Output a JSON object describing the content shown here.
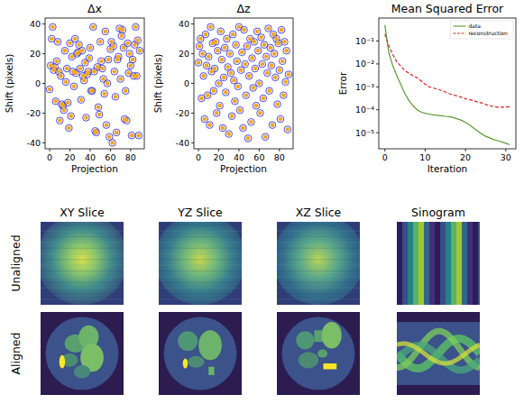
{
  "chart_data": [
    {
      "type": "scatter",
      "title": "Δx",
      "x_label": "Projection",
      "y_label": "Shift (pixels)",
      "x": [
        0,
        1,
        2,
        3,
        4,
        5,
        6,
        7,
        8,
        9,
        10,
        11,
        12,
        13,
        14,
        15,
        16,
        17,
        18,
        19,
        20,
        21,
        22,
        23,
        24,
        25,
        26,
        27,
        28,
        29,
        30,
        31,
        32,
        33,
        34,
        35,
        36,
        37,
        38,
        39,
        40,
        41,
        42,
        43,
        44,
        45,
        46,
        47,
        48,
        49,
        50,
        51,
        52,
        53,
        54,
        55,
        56,
        57,
        58,
        59,
        60,
        61,
        62,
        63,
        64,
        65,
        66,
        67,
        68,
        69,
        70,
        71,
        72,
        73,
        74,
        75,
        76,
        77,
        78,
        79,
        80,
        81,
        82,
        83,
        84,
        85,
        86,
        87,
        88,
        89
      ],
      "series": [
        {
          "color": "#3b3bd6",
          "marker": "circle-open",
          "values": [
            -4,
            12,
            30,
            38,
            9,
            11,
            -12,
            15,
            28,
            8,
            -25,
            5,
            -14,
            -15,
            -18,
            22,
            1,
            10,
            -13,
            -30,
            27,
            -22,
            18,
            8,
            -2,
            30,
            7,
            20,
            21,
            26,
            10,
            -11,
            22,
            5,
            2,
            14,
            -23,
            6,
            8,
            17,
            24,
            -5,
            -5,
            38,
            8,
            -32,
            -33,
            11,
            -16,
            -21,
            28,
            15,
            10,
            3,
            -7,
            35,
            -28,
            0,
            16,
            -36,
            23,
            28,
            -40,
            25,
            8,
            -9,
            -33,
            16,
            18,
            37,
            3,
            32,
            36,
            24,
            -24,
            -5,
            -25,
            27,
            7,
            20,
            12,
            -35,
            16,
            5,
            26,
            38,
            5,
            29,
            -35,
            22
          ]
        },
        {
          "color": "#f5a623",
          "marker": "dot",
          "values": [
            -4,
            12,
            30,
            38,
            9,
            11,
            -12,
            15,
            28,
            8,
            -25,
            5,
            -14,
            -15,
            -18,
            22,
            1,
            10,
            -13,
            -30,
            27,
            -22,
            18,
            8,
            -2,
            30,
            7,
            20,
            21,
            26,
            10,
            -11,
            22,
            5,
            2,
            14,
            -23,
            6,
            8,
            17,
            24,
            -5,
            -5,
            38,
            8,
            -32,
            -33,
            11,
            -16,
            -21,
            28,
            15,
            10,
            3,
            -7,
            35,
            -28,
            0,
            16,
            -36,
            23,
            28,
            -40,
            25,
            8,
            -9,
            -33,
            16,
            18,
            37,
            3,
            32,
            36,
            24,
            -24,
            -5,
            -25,
            27,
            7,
            20,
            12,
            -35,
            16,
            5,
            26,
            38,
            5,
            29,
            -35,
            22
          ]
        }
      ],
      "xlim": [
        -4.5,
        93.5
      ],
      "ylim": [
        -44,
        44
      ],
      "xticks": [
        0,
        20,
        40,
        60,
        80
      ],
      "yticks": [
        -40,
        -20,
        0,
        20,
        40
      ]
    },
    {
      "type": "scatter",
      "title": "Δz",
      "x_label": "Projection",
      "y_label": "Shift (pixels)",
      "x": [
        0,
        1,
        2,
        3,
        4,
        5,
        6,
        7,
        8,
        9,
        10,
        11,
        12,
        13,
        14,
        15,
        16,
        17,
        18,
        19,
        20,
        21,
        22,
        23,
        24,
        25,
        26,
        27,
        28,
        29,
        30,
        31,
        32,
        33,
        34,
        35,
        36,
        37,
        38,
        39,
        40,
        41,
        42,
        43,
        44,
        45,
        46,
        47,
        48,
        49,
        50,
        51,
        52,
        53,
        54,
        55,
        56,
        57,
        58,
        59,
        60,
        61,
        62,
        63,
        64,
        65,
        66,
        67,
        68,
        69,
        70,
        71,
        72,
        73,
        74,
        75,
        76,
        77,
        78,
        79,
        80,
        81,
        82,
        83,
        84,
        85,
        86,
        87,
        88,
        89
      ],
      "series": [
        {
          "color": "#3b3bd6",
          "marker": "circle-open",
          "values": [
            14,
            25,
            30,
            -10,
            20,
            5,
            -24,
            33,
            12,
            -8,
            18,
            -28,
            38,
            8,
            27,
            -5,
            10,
            28,
            -20,
            22,
            0,
            -15,
            35,
            16,
            -30,
            4,
            24,
            -6,
            30,
            11,
            -34,
            20,
            7,
            -22,
            33,
            2,
            -12,
            26,
            15,
            -2,
            38,
            -18,
            9,
            21,
            -30,
            36,
            13,
            -8,
            25,
            -37,
            5,
            30,
            -26,
            17,
            -3,
            28,
            10,
            -15,
            35,
            22,
            0,
            -20,
            31,
            13,
            -10,
            26,
            -36,
            18,
            7,
            37,
            -5,
            24,
            12,
            -28,
            33,
            20,
            4,
            30,
            -14,
            27,
            9,
            -24,
            36,
            15,
            -8,
            28,
            1,
            22,
            -31,
            6
          ]
        },
        {
          "color": "#f5a623",
          "marker": "dot",
          "values": [
            14,
            25,
            30,
            -10,
            20,
            5,
            -24,
            33,
            12,
            -8,
            18,
            -28,
            38,
            8,
            27,
            -5,
            10,
            28,
            -20,
            22,
            0,
            -15,
            35,
            16,
            -30,
            4,
            24,
            -6,
            30,
            11,
            -34,
            20,
            7,
            -22,
            33,
            2,
            -12,
            26,
            15,
            -2,
            38,
            -18,
            9,
            21,
            -30,
            36,
            13,
            -8,
            25,
            -37,
            5,
            30,
            -26,
            17,
            -3,
            28,
            10,
            -15,
            35,
            22,
            0,
            -20,
            31,
            13,
            -10,
            26,
            -36,
            18,
            7,
            37,
            -5,
            24,
            12,
            -28,
            33,
            20,
            4,
            30,
            -14,
            27,
            9,
            -24,
            36,
            15,
            -8,
            28,
            1,
            22,
            -31,
            6
          ]
        }
      ],
      "xlim": [
        -4.5,
        93.5
      ],
      "ylim": [
        -44,
        44
      ],
      "xticks": [
        0,
        20,
        40,
        60,
        80
      ],
      "yticks": [
        -40,
        -20,
        0,
        20,
        40
      ]
    },
    {
      "type": "line",
      "title": "Mean Squared Error",
      "x_label": "Iteration",
      "y_label": "Error",
      "x": [
        0,
        1,
        2,
        3,
        4,
        5,
        6,
        7,
        8,
        9,
        10,
        11,
        12,
        13,
        14,
        15,
        16,
        17,
        18,
        19,
        20,
        21,
        22,
        23,
        24,
        25,
        26,
        27,
        28,
        29,
        30,
        31
      ],
      "series": [
        {
          "name": "data",
          "color": "#5a9a32",
          "line_style": "solid",
          "values": [
            0.5,
            0.03,
            0.008,
            0.003,
            0.0012,
            0.0005,
            0.00025,
            0.00015,
            0.0001,
            8e-05,
            7e-05,
            6.5e-05,
            6e-05,
            5.8e-05,
            5.5e-05,
            5.2e-05,
            5e-05,
            4.6e-05,
            4e-05,
            3.5e-05,
            2.8e-05,
            2.2e-05,
            1.6e-05,
            1.2e-05,
            9e-06,
            7e-06,
            6e-06,
            5e-06,
            4.5e-06,
            4e-06,
            3.5e-06,
            3e-06
          ]
        },
        {
          "name": "reconstruction",
          "color": "#d62728",
          "line_style": "dashed",
          "values": [
            0.2,
            0.06,
            0.025,
            0.012,
            0.008,
            0.005,
            0.004,
            0.003,
            0.0025,
            0.0018,
            0.0013,
            0.001,
            0.0009,
            0.0008,
            0.0007,
            0.0006,
            0.0005,
            0.00045,
            0.0004,
            0.00035,
            0.0003,
            0.00028,
            0.00025,
            0.00022,
            0.0002,
            0.00017,
            0.00015,
            0.00014,
            0.00013,
            0.00013,
            0.00013,
            0.00014
          ]
        }
      ],
      "log": "y",
      "legend": "upper right",
      "xlim": [
        -1.5,
        32.5
      ],
      "ylim": [
        2e-06,
        1
      ],
      "xticks": [
        0,
        10,
        20,
        30
      ],
      "yticks": [
        {
          "value": 1e-05,
          "label": "10⁻⁵"
        },
        {
          "value": 0.001,
          "label": "10⁻³"
        },
        {
          "value": 0.01,
          "label": "10⁻²"
        },
        {
          "value": 0.1,
          "label": "10⁻¹"
        },
        {
          "value": 0.0001,
          "label": "10⁻⁴"
        }
      ]
    }
  ],
  "image_grid": {
    "columns": [
      "XY Slice",
      "YZ Slice",
      "XZ Slice",
      "Sinogram"
    ],
    "rows": [
      "Unaligned",
      "Aligned"
    ]
  }
}
